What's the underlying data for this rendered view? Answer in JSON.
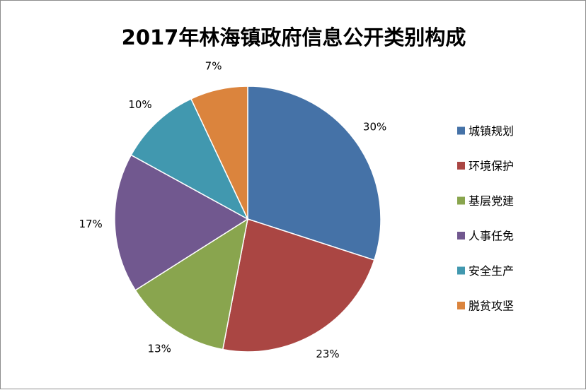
{
  "chart_data": {
    "type": "pie",
    "title": "2017年林海镇政府信息公开类别构成",
    "categories": [
      "城镇规划",
      "环境保护",
      "基层党建",
      "人事任免",
      "安全生产",
      "脱贫攻坚"
    ],
    "values": [
      30,
      23,
      13,
      17,
      10,
      7
    ],
    "labels": [
      "30%",
      "23%",
      "13%",
      "17%",
      "10%",
      "7%"
    ],
    "colors": [
      "#4572A7",
      "#AA4643",
      "#89A54E",
      "#71588F",
      "#4198AF",
      "#DB843D"
    ],
    "start_angle_deg": 0,
    "direction": "clockwise",
    "legend_position": "right",
    "data_labels_position": "outside"
  }
}
